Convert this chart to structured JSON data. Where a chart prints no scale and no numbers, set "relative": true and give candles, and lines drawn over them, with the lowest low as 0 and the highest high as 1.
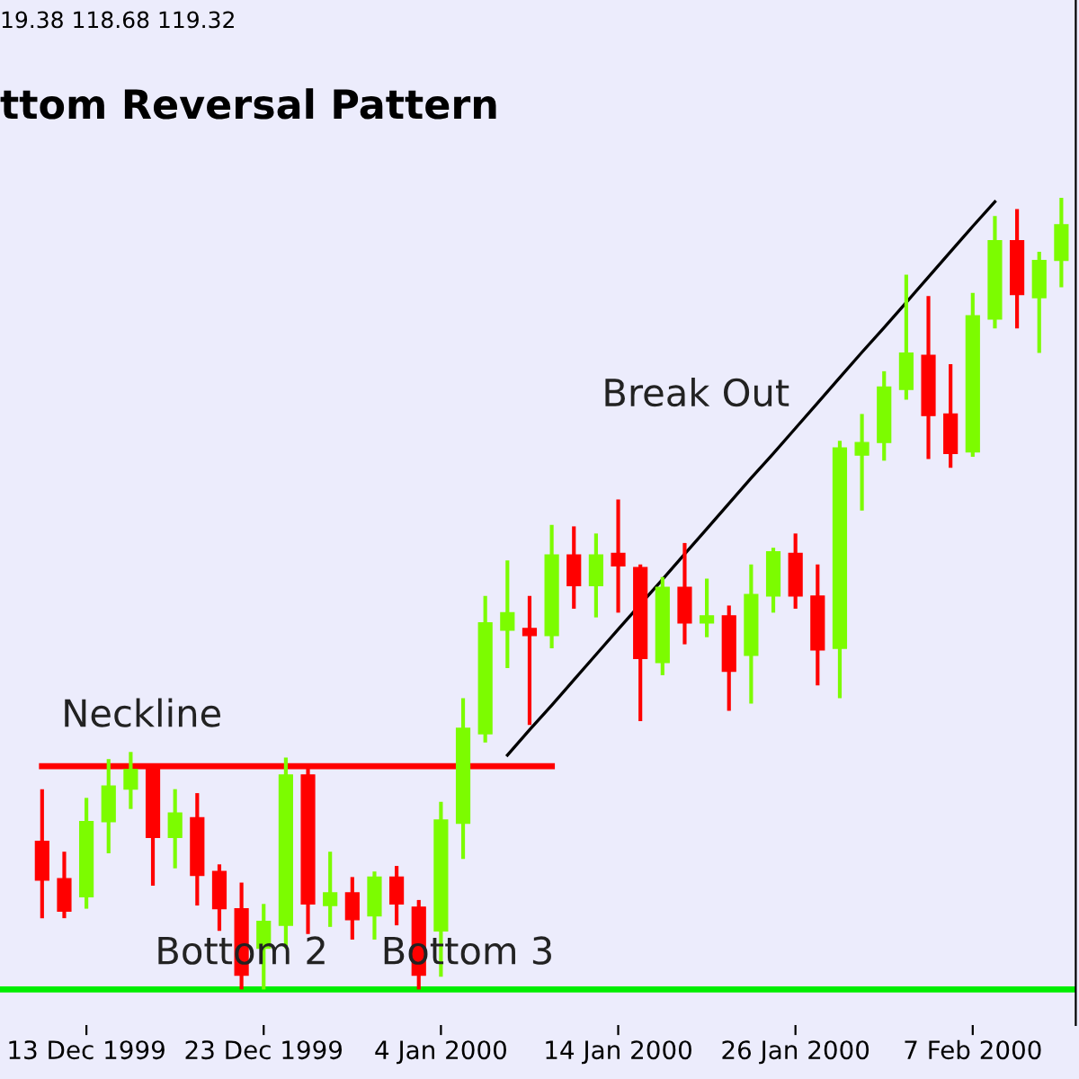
{
  "chart_data": {
    "type": "candlestick",
    "relative": true,
    "title": "ttom Reversal Pattern",
    "categories": [
      null,
      null,
      "13 Dec 1999",
      null,
      null,
      null,
      null,
      null,
      null,
      null,
      "23 Dec 1999",
      null,
      null,
      null,
      null,
      null,
      null,
      null,
      "4 Jan 2000",
      null,
      null,
      null,
      null,
      null,
      null,
      null,
      "14 Jan 2000",
      null,
      null,
      null,
      null,
      null,
      null,
      null,
      "26 Jan 2000",
      null,
      null,
      null,
      null,
      null,
      null,
      null,
      "7 Feb 2000",
      null,
      null,
      null,
      null
    ],
    "ohlc": [
      [
        0.187,
        0.253,
        0.09,
        0.138
      ],
      [
        0.14,
        0.174,
        0.09,
        0.099
      ],
      [
        0.117,
        0.242,
        0.102,
        0.212
      ],
      [
        0.212,
        0.291,
        0.172,
        0.257
      ],
      [
        0.253,
        0.3,
        0.228,
        0.278
      ],
      [
        0.278,
        0.282,
        0.131,
        0.192
      ],
      [
        0.192,
        0.253,
        0.153,
        0.223
      ],
      [
        0.217,
        0.248,
        0.106,
        0.144
      ],
      [
        0.149,
        0.158,
        0.074,
        0.102
      ],
      [
        0.102,
        0.135,
        0.0,
        0.018
      ],
      [
        0.052,
        0.108,
        0.0,
        0.086
      ],
      [
        0.081,
        0.293,
        0.052,
        0.271
      ],
      [
        0.271,
        0.284,
        0.07,
        0.108
      ],
      [
        0.106,
        0.174,
        0.079,
        0.122
      ],
      [
        0.122,
        0.142,
        0.063,
        0.088
      ],
      [
        0.093,
        0.149,
        0.063,
        0.142
      ],
      [
        0.142,
        0.156,
        0.081,
        0.108
      ],
      [
        0.104,
        0.113,
        0.0,
        0.018
      ],
      [
        0.074,
        0.237,
        0.016,
        0.214
      ],
      [
        0.21,
        0.368,
        0.165,
        0.33
      ],
      [
        0.323,
        0.497,
        0.312,
        0.463
      ],
      [
        0.454,
        0.542,
        0.406,
        0.476
      ],
      [
        0.456,
        0.497,
        0.334,
        0.447
      ],
      [
        0.447,
        0.587,
        0.431,
        0.549
      ],
      [
        0.549,
        0.585,
        0.481,
        0.51
      ],
      [
        0.51,
        0.576,
        0.47,
        0.549
      ],
      [
        0.551,
        0.619,
        0.476,
        0.535
      ],
      [
        0.533,
        0.537,
        0.339,
        0.418
      ],
      [
        0.413,
        0.521,
        0.397,
        0.508
      ],
      [
        0.508,
        0.564,
        0.436,
        0.463
      ],
      [
        0.463,
        0.519,
        0.445,
        0.472
      ],
      [
        0.472,
        0.485,
        0.352,
        0.402
      ],
      [
        0.422,
        0.537,
        0.361,
        0.499
      ],
      [
        0.497,
        0.558,
        0.476,
        0.553
      ],
      [
        0.551,
        0.576,
        0.481,
        0.497
      ],
      [
        0.497,
        0.537,
        0.384,
        0.429
      ],
      [
        0.431,
        0.693,
        0.368,
        0.684
      ],
      [
        0.675,
        0.727,
        0.605,
        0.691
      ],
      [
        0.691,
        0.781,
        0.668,
        0.761
      ],
      [
        0.758,
        0.903,
        0.745,
        0.804
      ],
      [
        0.801,
        0.876,
        0.67,
        0.725
      ],
      [
        0.727,
        0.79,
        0.659,
        0.677
      ],
      [
        0.679,
        0.88,
        0.673,
        0.851
      ],
      [
        0.847,
        0.977,
        0.835,
        0.946
      ],
      [
        0.946,
        0.986,
        0.835,
        0.878
      ],
      [
        0.874,
        0.932,
        0.804,
        0.921
      ],
      [
        0.921,
        1.0,
        0.887,
        0.966
      ]
    ],
    "colors": [
      "#ff0000",
      "#ff0000",
      "#7cfc00",
      "#7cfc00",
      "#7cfc00",
      "#ff0000",
      "#7cfc00",
      "#ff0000",
      "#ff0000",
      "#ff0000",
      "#7cfc00",
      "#7cfc00",
      "#ff0000",
      "#7cfc00",
      "#ff0000",
      "#7cfc00",
      "#ff0000",
      "#ff0000",
      "#7cfc00",
      "#7cfc00",
      "#7cfc00",
      "#7cfc00",
      "#ff0000",
      "#7cfc00",
      "#ff0000",
      "#7cfc00",
      "#ff0000",
      "#ff0000",
      "#7cfc00",
      "#ff0000",
      "#7cfc00",
      "#ff0000",
      "#7cfc00",
      "#7cfc00",
      "#ff0000",
      "#ff0000",
      "#7cfc00",
      "#7cfc00",
      "#7cfc00",
      "#7cfc00",
      "#ff0000",
      "#ff0000",
      "#7cfc00",
      "#7cfc00",
      "#ff0000",
      "#7cfc00",
      "#7cfc00"
    ],
    "series": [
      {
        "type": "line",
        "color": "#000000",
        "values": [
          null,
          null,
          null,
          null,
          null,
          null,
          null,
          null,
          null,
          null,
          null,
          null,
          null,
          null,
          null,
          null,
          null,
          null,
          null,
          null,
          null,
          0.296,
          0.328,
          0.359,
          0.391,
          0.423,
          0.455,
          null,
          0.518,
          0.55,
          0.582,
          0.614,
          0.646,
          0.677,
          0.709,
          0.741,
          0.773,
          0.805,
          0.836,
          0.868,
          0.9,
          0.932,
          0.964,
          0.995,
          null,
          null,
          null
        ]
      },
      {
        "type": "line",
        "color": "#ff0000",
        "values": [
          0.282,
          0.282,
          0.282,
          0.282,
          0.282,
          0.282,
          0.282,
          0.282,
          0.282,
          0.282,
          0.282,
          0.282,
          0.282,
          0.282,
          0.282,
          0.282,
          0.282,
          0.282,
          0.282,
          0.282,
          0.282,
          0.282,
          0.282,
          0.282,
          null,
          null,
          null,
          null,
          null,
          null,
          null,
          null,
          null,
          null,
          null,
          null,
          null,
          null,
          null,
          null,
          null,
          null,
          null,
          null,
          null,
          null,
          null
        ]
      }
    ],
    "annotations": [
      "19.38 118.68 119.32",
      "Neckline",
      "Bottom 2",
      "Bottom 3",
      "Break Out"
    ],
    "grid": false,
    "legend": false
  }
}
